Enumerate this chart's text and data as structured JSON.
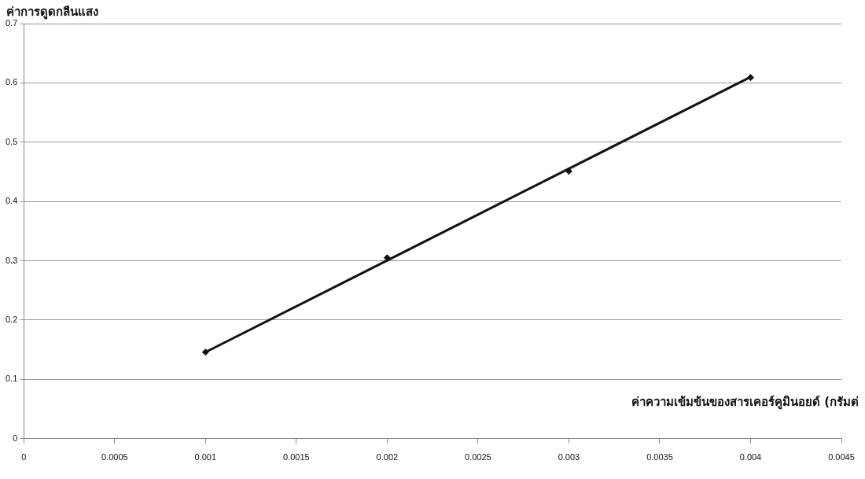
{
  "chart_data": {
    "type": "scatter",
    "xlabel": "ค่าความเข้มข้นของสารเคอร์คูมินอยด์ (กรัมต่",
    "ylabel": "ค่าการดูดกลืนแสง",
    "series": [
      {
        "color": "#111111",
        "x": [
          0.001,
          0.002,
          0.003,
          0.004
        ],
        "values": [
          0.146,
          0.305,
          0.451,
          0.609
        ]
      },
      {
        "type": "line",
        "marker": "none",
        "color": "#111111",
        "x": [
          0.001,
          0.004
        ],
        "values": [
          0.146,
          0.61
        ]
      }
    ],
    "marker": "diamond",
    "grid": "y",
    "xlim": [
      0,
      0.0045
    ],
    "xticks": [
      0,
      0.0005,
      0.001,
      0.0015,
      0.002,
      0.0025,
      0.003,
      0.0035,
      0.004,
      0.0045
    ],
    "ylim": [
      0,
      0.7
    ],
    "yticks": [
      0,
      0.1,
      0.2,
      0.3,
      0.4,
      0.5,
      0.6,
      0.7
    ]
  }
}
